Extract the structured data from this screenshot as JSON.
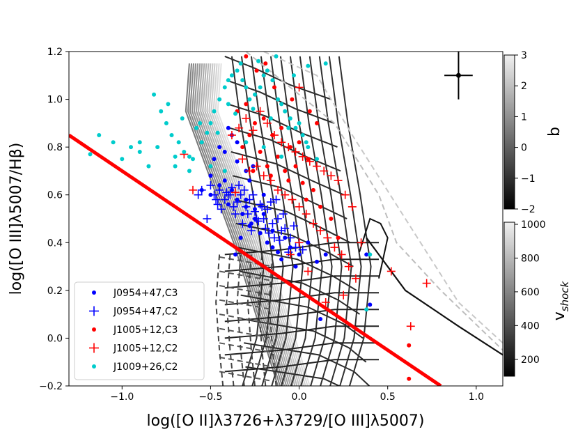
{
  "chart_data": {
    "type": "scatter",
    "xlabel": "log([O II]λ3726+λ3729/[O III]λ5007)",
    "ylabel": "log([O III]λ5007/Hβ)",
    "xlim": [
      -1.3,
      1.15
    ],
    "ylim": [
      -0.2,
      1.2
    ],
    "xticks": [
      -1.0,
      -0.5,
      0.0,
      0.5,
      1.0
    ],
    "xtick_labels": [
      "−1.0",
      "−0.5",
      "0.0",
      "0.5",
      "1.0"
    ],
    "yticks": [
      -0.2,
      0.0,
      0.2,
      0.4,
      0.6,
      0.8,
      1.0,
      1.2
    ],
    "ytick_labels": [
      "−0.2",
      "0.0",
      "0.2",
      "0.4",
      "0.6",
      "0.8",
      "1.0",
      "1.2"
    ],
    "dividing_line": {
      "color": "#ff0000",
      "x": [
        -1.3,
        0.8
      ],
      "y": [
        0.85,
        -0.2
      ]
    },
    "error_bar": {
      "x": 0.9,
      "y": 1.1,
      "xerr": 0.08,
      "yerr": 0.1
    },
    "legend": {
      "position": "lower-left",
      "entries": [
        {
          "label": "J0954+47,C3",
          "marker": "dot",
          "color": "#0000ff"
        },
        {
          "label": "J0954+47,C2",
          "marker": "plus",
          "color": "#0000ff"
        },
        {
          "label": "J1005+12,C3",
          "marker": "dot",
          "color": "#ff0000"
        },
        {
          "label": "J1005+12,C2",
          "marker": "plus",
          "color": "#ff0000"
        },
        {
          "label": "J1009+26,C2",
          "marker": "dot",
          "color": "#00cccc"
        }
      ]
    },
    "series": [
      {
        "name": "J0954+47,C3",
        "marker": "dot",
        "color": "#0000ff",
        "x": [
          -0.38,
          -0.35,
          -0.3,
          -0.25,
          -0.2,
          -0.45,
          -0.42,
          -0.32,
          -0.28,
          -0.22,
          -0.18,
          -0.15,
          -0.5,
          -0.4,
          -0.36,
          -0.33,
          -0.27,
          -0.12,
          -0.1,
          -0.05,
          -0.02,
          0.0,
          0.05,
          0.1,
          -0.08,
          -0.3,
          -0.26,
          -0.38,
          -0.35,
          -0.42,
          -0.48,
          -0.55,
          0.12,
          0.15,
          0.4,
          0.38,
          -0.2,
          -0.15,
          -0.3,
          -0.25,
          -0.45,
          -0.5,
          -0.4,
          -0.35,
          -0.28
        ],
        "y": [
          0.62,
          0.58,
          0.55,
          0.5,
          0.6,
          0.64,
          0.66,
          0.52,
          0.47,
          0.44,
          0.4,
          0.38,
          0.6,
          0.56,
          0.35,
          0.42,
          0.48,
          0.36,
          0.33,
          0.38,
          0.3,
          0.35,
          0.4,
          0.32,
          0.42,
          0.7,
          0.72,
          0.85,
          0.82,
          0.78,
          0.75,
          0.62,
          0.08,
          0.35,
          0.14,
          0.35,
          0.52,
          0.45,
          0.58,
          0.54,
          0.8,
          0.68,
          0.88,
          0.74,
          0.66
        ]
      },
      {
        "name": "J0954+47,C2",
        "marker": "plus",
        "color": "#0000ff",
        "x": [
          -0.48,
          -0.45,
          -0.42,
          -0.4,
          -0.38,
          -0.35,
          -0.33,
          -0.3,
          -0.28,
          -0.25,
          -0.22,
          -0.2,
          -0.18,
          -0.15,
          -0.12,
          -0.1,
          -0.08,
          -0.05,
          -0.02,
          0.0,
          -0.5,
          -0.52,
          -0.46,
          -0.44,
          -0.36,
          -0.32,
          -0.27,
          -0.24,
          -0.19,
          -0.14,
          -0.55,
          -0.57,
          -0.41,
          -0.37,
          -0.29,
          -0.23,
          -0.17,
          -0.11,
          -0.06,
          0.02,
          -0.34,
          -0.26,
          -0.16,
          -0.09,
          -0.03,
          -0.47,
          -0.39,
          -0.31,
          -0.21,
          -0.13
        ],
        "y": [
          0.6,
          0.62,
          0.58,
          0.6,
          0.63,
          0.57,
          0.6,
          0.55,
          0.58,
          0.53,
          0.56,
          0.5,
          0.54,
          0.48,
          0.5,
          0.45,
          0.46,
          0.42,
          0.38,
          0.4,
          0.64,
          0.5,
          0.56,
          0.54,
          0.52,
          0.48,
          0.45,
          0.5,
          0.46,
          0.42,
          0.62,
          0.6,
          0.61,
          0.55,
          0.52,
          0.49,
          0.44,
          0.41,
          0.36,
          0.37,
          0.64,
          0.6,
          0.57,
          0.52,
          0.47,
          0.58,
          0.6,
          0.62,
          0.55,
          0.58
        ]
      },
      {
        "name": "J1005+12,C3",
        "marker": "dot",
        "color": "#ff0000",
        "x": [
          -0.35,
          -0.3,
          -0.25,
          -0.2,
          -0.15,
          -0.1,
          -0.05,
          0.0,
          0.05,
          -0.28,
          -0.22,
          -0.18,
          -0.12,
          -0.08,
          -0.02,
          0.02,
          0.08,
          -0.32,
          -0.26,
          -0.16,
          -0.06,
          0.04,
          0.12,
          0.18,
          0.22,
          -0.2,
          -0.14,
          -0.04,
          0.06,
          0.1,
          0.62,
          0.62,
          -0.3,
          -0.24,
          -0.19
        ],
        "y": [
          0.95,
          0.98,
          0.9,
          0.92,
          0.85,
          0.88,
          0.8,
          0.82,
          0.75,
          0.85,
          0.78,
          0.72,
          0.76,
          0.7,
          0.72,
          0.65,
          0.62,
          0.8,
          0.7,
          0.68,
          0.66,
          0.58,
          0.55,
          0.5,
          0.42,
          1.1,
          1.05,
          1.0,
          0.95,
          0.9,
          -0.03,
          -0.17,
          1.18,
          1.12,
          1.15
        ]
      },
      {
        "name": "J1005+12,C2",
        "marker": "plus",
        "color": "#ff0000",
        "x": [
          -0.38,
          -0.34,
          -0.3,
          -0.26,
          -0.22,
          -0.18,
          -0.14,
          -0.1,
          -0.06,
          -0.02,
          0.02,
          0.06,
          0.1,
          0.14,
          0.18,
          0.22,
          0.26,
          0.3,
          -0.32,
          -0.28,
          -0.24,
          -0.2,
          -0.16,
          -0.12,
          -0.08,
          -0.04,
          0.0,
          0.04,
          0.08,
          0.12,
          0.16,
          0.2,
          0.24,
          0.28,
          0.32,
          -0.65,
          -0.6,
          -0.36,
          0.05,
          0.25,
          0.52,
          0.72,
          0.63,
          0.35,
          0.15,
          0.0,
          -0.05,
          0.0
        ],
        "y": [
          0.85,
          0.88,
          0.92,
          0.87,
          0.95,
          0.9,
          0.85,
          0.82,
          0.8,
          0.78,
          0.76,
          0.74,
          0.72,
          0.7,
          0.68,
          0.66,
          0.6,
          0.55,
          0.75,
          0.7,
          0.72,
          0.68,
          0.66,
          0.62,
          0.6,
          0.58,
          0.55,
          0.52,
          0.48,
          0.45,
          0.42,
          0.38,
          0.35,
          0.3,
          0.25,
          0.77,
          0.62,
          0.61,
          0.28,
          0.18,
          0.28,
          0.23,
          0.05,
          0.4,
          0.15,
          0.4,
          0.35,
          1.05
        ]
      },
      {
        "name": "J1009+26,C2",
        "marker": "dot",
        "color": "#00cccc",
        "x": [
          -1.18,
          -1.13,
          -1.05,
          -1.0,
          -0.95,
          -0.9,
          -0.85,
          -0.8,
          -0.78,
          -0.75,
          -0.72,
          -0.7,
          -0.68,
          -0.65,
          -0.62,
          -0.6,
          -0.58,
          -0.55,
          -0.52,
          -0.5,
          -0.48,
          -0.45,
          -0.42,
          -0.4,
          -0.38,
          -0.35,
          -0.32,
          -0.3,
          -0.28,
          -0.25,
          -0.22,
          -0.2,
          -0.18,
          -0.15,
          -0.12,
          -0.1,
          -0.08,
          -0.05,
          -0.02,
          0.0,
          0.02,
          0.05,
          0.1,
          -0.82,
          -0.74,
          -0.66,
          -0.56,
          -0.46,
          -0.36,
          -0.26,
          -0.16,
          -0.06,
          0.04,
          -0.9,
          -0.7,
          -0.62,
          -0.5,
          -0.42,
          -0.3,
          -0.2,
          -0.1,
          -0.4,
          -0.33,
          -0.23,
          -0.13,
          -0.03,
          0.05,
          0.15,
          0.38,
          0.4
        ],
        "y": [
          0.77,
          0.85,
          0.82,
          0.75,
          0.8,
          0.78,
          0.72,
          0.8,
          0.95,
          0.9,
          0.85,
          0.76,
          0.82,
          0.78,
          0.7,
          0.75,
          0.88,
          0.82,
          0.86,
          0.9,
          0.95,
          1.0,
          1.05,
          1.08,
          1.1,
          1.12,
          1.08,
          1.05,
          1.0,
          1.02,
          1.05,
          1.1,
          1.12,
          1.08,
          1.0,
          0.98,
          0.95,
          0.92,
          0.88,
          0.9,
          0.85,
          0.8,
          0.75,
          1.02,
          0.98,
          0.92,
          0.9,
          0.86,
          0.94,
          0.96,
          0.92,
          0.88,
          0.82,
          0.82,
          0.72,
          0.76,
          0.72,
          0.7,
          0.82,
          0.8,
          0.76,
          0.98,
          1.15,
          1.16,
          1.18,
          1.1,
          1.14,
          1.15,
          0.12,
          0.35
        ]
      }
    ],
    "colorbars": [
      {
        "label": "b",
        "ticks": [
          3,
          2,
          1,
          0,
          -1,
          -2
        ],
        "tick_labels": [
          "3",
          "2",
          "1",
          "0",
          "−1",
          "−2"
        ],
        "range": [
          -2,
          3
        ]
      },
      {
        "label": "v",
        "label_subscript": "shock",
        "ticks": [
          1000,
          800,
          600,
          400,
          200
        ],
        "tick_labels": [
          "1000",
          "800",
          "600",
          "400",
          "200"
        ],
        "range": [
          100,
          1000
        ]
      }
    ],
    "model_grids": {
      "description": "shock model grids (solid = shock+precursor, dashed = shock only)"
    }
  }
}
